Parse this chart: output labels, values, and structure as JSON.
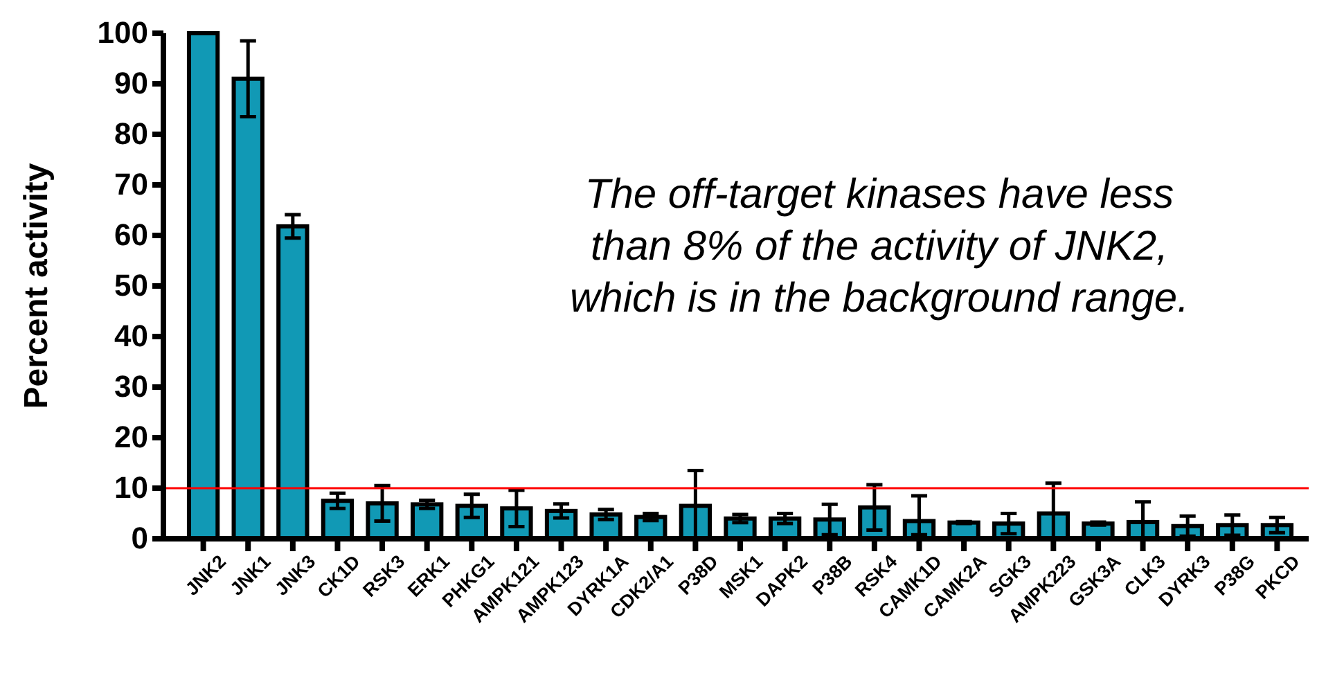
{
  "chart_data": {
    "type": "bar",
    "ylabel": "Percent activity",
    "categories": [
      "JNK2",
      "JNK1",
      "JNK3",
      "CK1D",
      "RSK3",
      "ERK1",
      "PHKG1",
      "AMPK121",
      "AMPK123",
      "DYRK1A",
      "CDK2/A1",
      "P38D",
      "MSK1",
      "DAPK2",
      "P38B",
      "RSK4",
      "CAMK1D",
      "CAMK2A",
      "SGK3",
      "AMPK223",
      "GSK3A",
      "CLK3",
      "DYRK3",
      "P38G",
      "PKCD"
    ],
    "values": [
      100,
      91,
      61.8,
      7.5,
      7,
      6.8,
      6.5,
      6,
      5.5,
      4.8,
      4.3,
      6.5,
      4,
      4,
      3.8,
      6.2,
      3.5,
      3.2,
      3,
      5,
      3,
      3.3,
      2.5,
      2.7,
      2.7
    ],
    "errors": [
      null,
      7.5,
      2.3,
      1.5,
      3.5,
      0.8,
      2.3,
      3.6,
      1.4,
      1,
      0.7,
      [
        0,
        13.5
      ],
      0.8,
      1,
      3,
      4.5,
      [
        0.8,
        8.5
      ],
      0.2,
      2,
      [
        0,
        11
      ],
      0.3,
      [
        0,
        7.3
      ],
      2,
      2,
      1.5
    ],
    "color": "#1199b5",
    "ylim": [
      0,
      100
    ],
    "yticks": [
      0,
      10,
      20,
      30,
      40,
      50,
      60,
      70,
      80,
      90,
      100
    ],
    "ref_lines": [
      {
        "axis": "y",
        "value": 10,
        "color": "#ff0000"
      }
    ],
    "annotations": [
      "The off-target kinases have less\nthan 8% of the activity of JNK2,\nwhich is in the background range."
    ]
  }
}
